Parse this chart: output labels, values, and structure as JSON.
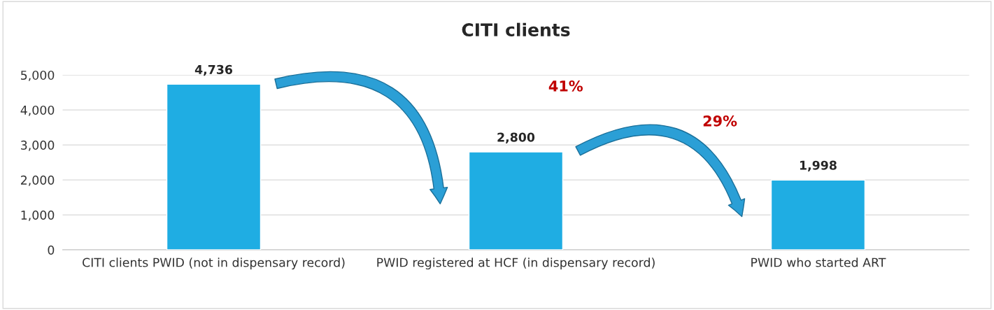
{
  "chart_data": {
    "type": "bar",
    "title": "CITI clients",
    "categories": [
      "CITI clients PWID (not in dispensary record)",
      "PWID registered at HCF (in dispensary record)",
      "PWID who started ART"
    ],
    "values": [
      4736,
      2800,
      1998
    ],
    "color": "#1fade3",
    "ylim": [
      0,
      5000
    ],
    "yticks": [
      {
        "value": 0,
        "label": "0"
      },
      {
        "value": 1000,
        "label": "1,000"
      },
      {
        "value": 2000,
        "label": "2,000"
      },
      {
        "value": 3000,
        "label": "3,000"
      },
      {
        "value": 4000,
        "label": "4,000"
      },
      {
        "value": 5000,
        "label": "5,000"
      }
    ],
    "grid": "y",
    "value_labels": [
      "4,736",
      "2,800",
      "1,998"
    ],
    "annotations": [
      "41%",
      "29%"
    ]
  }
}
